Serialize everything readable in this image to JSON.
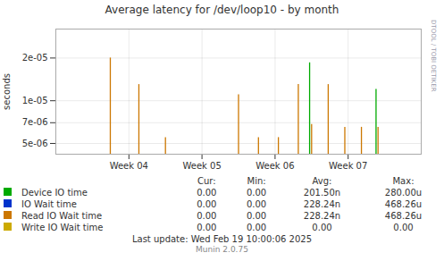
{
  "chart_data": {
    "type": "bar",
    "title": "Average latency for /dev/loop10 - by month",
    "y_label": "seconds",
    "log": "y",
    "grid": true,
    "legend": "bottom",
    "xlim": [
      0.0,
      5.5
    ],
    "xticks": [
      {
        "value": 1.1,
        "label": "Week 04"
      },
      {
        "value": 2.2,
        "label": "Week 05"
      },
      {
        "value": 3.3,
        "label": "Week 06"
      },
      {
        "value": 4.4,
        "label": "Week 07"
      }
    ],
    "ylim": [
      4.2e-06,
      3.2e-05
    ],
    "yticks": [
      {
        "value": 5e-06,
        "label": "5e-06"
      },
      {
        "value": 7e-06,
        "label": "7e-06"
      },
      {
        "value": 1e-05,
        "label": "1e-05"
      },
      {
        "value": 2e-05,
        "label": "2e-05"
      }
    ],
    "legend_columns": [
      "Cur:",
      "Min:",
      "Avg:",
      "Max:"
    ],
    "series": [
      {
        "name": "Device IO time",
        "color": "#00aa00",
        "x": [
          3.82,
          4.82
        ],
        "values": [
          1.85e-05,
          1.2e-05
        ],
        "stats": [
          "0.00",
          "0.00",
          "201.50n",
          "280.00u"
        ]
      },
      {
        "name": "IO Wait time",
        "color": "#0033cc",
        "x": [],
        "values": [],
        "stats": [
          "0.00",
          "0.00",
          "228.24n",
          "468.26u"
        ]
      },
      {
        "name": "Read IO Wait time",
        "color": "#cc7700",
        "x": [
          0.82,
          1.25,
          1.65,
          2.75,
          3.05,
          3.35,
          3.65,
          3.85,
          4.1,
          4.35,
          4.6,
          4.85
        ],
        "values": [
          2e-05,
          1.3e-05,
          5.5e-06,
          1.1e-05,
          5.5e-06,
          5.5e-06,
          1.3e-05,
          6.8e-06,
          1.3e-05,
          6.5e-06,
          6.5e-06,
          6.5e-06
        ],
        "stats": [
          "0.00",
          "0.00",
          "228.24n",
          "468.26u"
        ]
      },
      {
        "name": "Write IO Wait time",
        "color": "#ccaa00",
        "x": [],
        "values": [],
        "stats": [
          "0.00",
          "0.00",
          "0.00",
          "0.00"
        ]
      }
    ],
    "annotations": [
      "RRDTOOL / TOBI OETIKER",
      "Last update: Wed Feb 19 10:00:06 2025",
      "Munin 2.0.75"
    ]
  }
}
